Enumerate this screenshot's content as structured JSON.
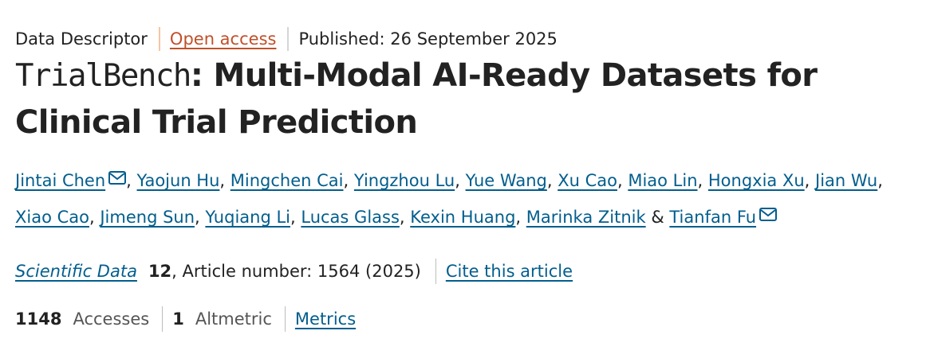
{
  "header": {
    "article_type": "Data Descriptor",
    "open_access_label": "Open access",
    "published": "Published: 26 September 2025"
  },
  "title": {
    "prefix": "TrialBench",
    "rest": ": Multi-Modal AI-Ready Datasets for Clinical Trial Prediction"
  },
  "authors": {
    "list": [
      {
        "name": "Jintai Chen",
        "email_icon": true
      },
      {
        "name": "Yaojun Hu"
      },
      {
        "name": "Mingchen Cai"
      },
      {
        "name": "Yingzhou Lu"
      },
      {
        "name": "Yue Wang"
      },
      {
        "name": "Xu Cao"
      },
      {
        "name": "Miao Lin"
      },
      {
        "name": "Hongxia Xu"
      },
      {
        "name": "Jian Wu"
      },
      {
        "name": "Xiao Cao"
      },
      {
        "name": "Jimeng Sun"
      },
      {
        "name": "Yuqiang Li"
      },
      {
        "name": "Lucas Glass"
      },
      {
        "name": "Kexin Huang"
      },
      {
        "name": "Marinka Zitnik"
      },
      {
        "name": "Tianfan Fu",
        "email_icon": true
      }
    ],
    "separator": ", ",
    "final_separator": " & ",
    "icon": "envelope-icon"
  },
  "citation": {
    "journal": "Scientific Data",
    "volume": "12",
    "article_number": ", Article number: 1564 (2025)",
    "cite_link": "Cite this article"
  },
  "metrics": {
    "accesses_count": "1148",
    "accesses_label": "Accesses",
    "altmetric_count": "1",
    "altmetric_label": "Altmetric",
    "metrics_link": "Metrics"
  },
  "colors": {
    "link": "#025e8d",
    "open_access": "#c0502a",
    "text": "#222222"
  }
}
